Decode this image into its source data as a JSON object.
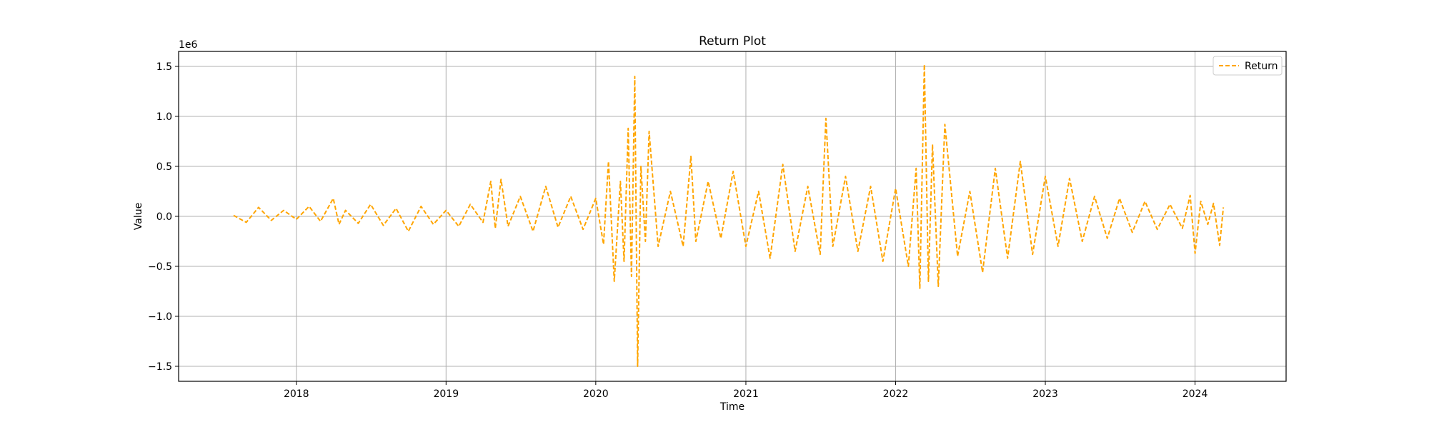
{
  "chart_data": {
    "type": "line",
    "title": "Return Plot",
    "xlabel": "Time",
    "ylabel": "Value",
    "y_scale_label": "1e6",
    "y_scale_factor": 1000000,
    "xlim": [
      "2017-03-20",
      "2024-08-10"
    ],
    "ylim": [
      -1650000,
      1650000
    ],
    "x_ticks": [
      "2018-01-01",
      "2019-01-01",
      "2020-01-01",
      "2021-01-01",
      "2022-01-01",
      "2023-01-01",
      "2024-01-01"
    ],
    "x_tick_labels": [
      "2018",
      "2019",
      "2020",
      "2021",
      "2022",
      "2023",
      "2024"
    ],
    "y_ticks": [
      -1500000,
      -1000000,
      -500000,
      0,
      500000,
      1000000,
      1500000
    ],
    "y_tick_labels": [
      "−1.5",
      "−1.0",
      "−0.5",
      "0.0",
      "0.5",
      "1.0",
      "1.5"
    ],
    "grid": true,
    "legend_position": "top-right",
    "series": [
      {
        "name": "Return",
        "color": "#FFA500",
        "line_style": "dashed",
        "points": [
          [
            "2017-08-01",
            10000
          ],
          [
            "2017-09-01",
            -60000
          ],
          [
            "2017-10-01",
            90000
          ],
          [
            "2017-11-01",
            -40000
          ],
          [
            "2017-12-01",
            60000
          ],
          [
            "2018-01-01",
            -30000
          ],
          [
            "2018-02-01",
            100000
          ],
          [
            "2018-03-01",
            -50000
          ],
          [
            "2018-04-01",
            180000
          ],
          [
            "2018-04-15",
            -80000
          ],
          [
            "2018-05-01",
            60000
          ],
          [
            "2018-06-01",
            -70000
          ],
          [
            "2018-07-01",
            120000
          ],
          [
            "2018-08-01",
            -90000
          ],
          [
            "2018-09-01",
            80000
          ],
          [
            "2018-10-01",
            -150000
          ],
          [
            "2018-11-01",
            100000
          ],
          [
            "2018-12-01",
            -80000
          ],
          [
            "2019-01-01",
            60000
          ],
          [
            "2019-02-01",
            -100000
          ],
          [
            "2019-03-01",
            120000
          ],
          [
            "2019-04-01",
            -60000
          ],
          [
            "2019-04-20",
            350000
          ],
          [
            "2019-05-01",
            -120000
          ],
          [
            "2019-05-15",
            370000
          ],
          [
            "2019-06-01",
            -100000
          ],
          [
            "2019-07-01",
            200000
          ],
          [
            "2019-08-01",
            -150000
          ],
          [
            "2019-09-01",
            300000
          ],
          [
            "2019-10-01",
            -110000
          ],
          [
            "2019-11-01",
            200000
          ],
          [
            "2019-12-01",
            -130000
          ],
          [
            "2020-01-01",
            180000
          ],
          [
            "2020-01-20",
            -280000
          ],
          [
            "2020-02-01",
            550000
          ],
          [
            "2020-02-15",
            -650000
          ],
          [
            "2020-03-01",
            350000
          ],
          [
            "2020-03-10",
            -450000
          ],
          [
            "2020-03-20",
            880000
          ],
          [
            "2020-03-28",
            -600000
          ],
          [
            "2020-04-05",
            1400000
          ],
          [
            "2020-04-12",
            -1500000
          ],
          [
            "2020-04-20",
            500000
          ],
          [
            "2020-05-01",
            -250000
          ],
          [
            "2020-05-10",
            850000
          ],
          [
            "2020-06-01",
            -300000
          ],
          [
            "2020-07-01",
            250000
          ],
          [
            "2020-08-01",
            -300000
          ],
          [
            "2020-08-20",
            600000
          ],
          [
            "2020-09-01",
            -250000
          ],
          [
            "2020-10-01",
            350000
          ],
          [
            "2020-11-01",
            -220000
          ],
          [
            "2020-12-01",
            450000
          ],
          [
            "2021-01-01",
            -300000
          ],
          [
            "2021-02-01",
            250000
          ],
          [
            "2021-03-01",
            -420000
          ],
          [
            "2021-04-01",
            520000
          ],
          [
            "2021-05-01",
            -350000
          ],
          [
            "2021-06-01",
            300000
          ],
          [
            "2021-07-01",
            -380000
          ],
          [
            "2021-07-15",
            980000
          ],
          [
            "2021-08-01",
            -300000
          ],
          [
            "2021-09-01",
            400000
          ],
          [
            "2021-10-01",
            -350000
          ],
          [
            "2021-11-01",
            300000
          ],
          [
            "2021-12-01",
            -450000
          ],
          [
            "2022-01-01",
            280000
          ],
          [
            "2022-02-01",
            -500000
          ],
          [
            "2022-02-20",
            480000
          ],
          [
            "2022-03-01",
            -720000
          ],
          [
            "2022-03-12",
            1520000
          ],
          [
            "2022-03-22",
            -650000
          ],
          [
            "2022-04-01",
            720000
          ],
          [
            "2022-04-15",
            -700000
          ],
          [
            "2022-05-01",
            920000
          ],
          [
            "2022-06-01",
            -400000
          ],
          [
            "2022-07-01",
            250000
          ],
          [
            "2022-08-01",
            -560000
          ],
          [
            "2022-09-01",
            480000
          ],
          [
            "2022-10-01",
            -420000
          ],
          [
            "2022-11-01",
            550000
          ],
          [
            "2022-12-01",
            -380000
          ],
          [
            "2023-01-01",
            400000
          ],
          [
            "2023-02-01",
            -300000
          ],
          [
            "2023-03-01",
            380000
          ],
          [
            "2023-04-01",
            -250000
          ],
          [
            "2023-05-01",
            200000
          ],
          [
            "2023-06-01",
            -220000
          ],
          [
            "2023-07-01",
            180000
          ],
          [
            "2023-08-01",
            -160000
          ],
          [
            "2023-09-01",
            150000
          ],
          [
            "2023-10-01",
            -130000
          ],
          [
            "2023-11-01",
            120000
          ],
          [
            "2023-12-01",
            -120000
          ],
          [
            "2023-12-20",
            210000
          ],
          [
            "2024-01-01",
            -370000
          ],
          [
            "2024-01-15",
            150000
          ],
          [
            "2024-02-01",
            -80000
          ],
          [
            "2024-02-15",
            130000
          ],
          [
            "2024-03-01",
            -290000
          ],
          [
            "2024-03-10",
            90000
          ]
        ]
      }
    ]
  }
}
